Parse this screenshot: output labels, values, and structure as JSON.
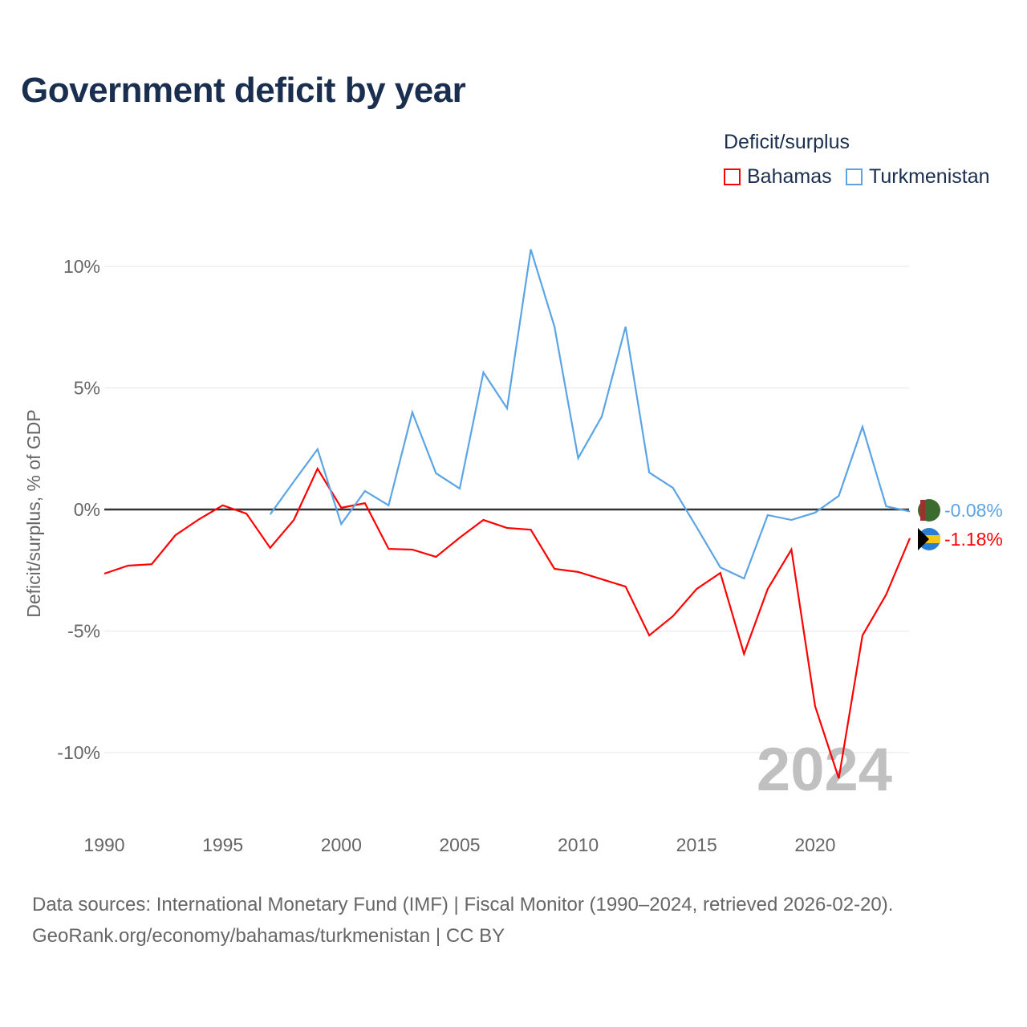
{
  "title": "Government deficit by year",
  "legend": {
    "title": "Deficit/surplus",
    "items": [
      {
        "label": "Bahamas",
        "color": "#ff0000"
      },
      {
        "label": "Turkmenistan",
        "color": "#5ba4e6"
      }
    ]
  },
  "source": {
    "line1": "Data sources: International Monetary Fund (IMF) | Fiscal Monitor (1990–2024, retrieved 2026-02-20).",
    "line2": "GeoRank.org/economy/bahamas/turkmenistan | CC BY"
  },
  "chart_data": {
    "type": "line",
    "title": "Government deficit by year",
    "xlabel": "",
    "ylabel": "Deficit/surplus, % of GDP",
    "xlim": [
      1990,
      2024
    ],
    "ylim": [
      -12.5,
      12
    ],
    "x_ticks": [
      "1990",
      "1995",
      "2000",
      "2005",
      "2010",
      "2015",
      "2020"
    ],
    "y_ticks": [
      {
        "v": 10,
        "label": "10%"
      },
      {
        "v": 5,
        "label": "5%"
      },
      {
        "v": 0,
        "label": "0%"
      },
      {
        "v": -5,
        "label": "-5%"
      },
      {
        "v": -10,
        "label": "-10%"
      }
    ],
    "year_watermark": "2024",
    "series": [
      {
        "name": "Bahamas",
        "color": "#ff0000",
        "end_label": "-1.18%",
        "x": [
          1990,
          1991,
          1992,
          1993,
          1994,
          1995,
          1996,
          1997,
          1998,
          1999,
          2000,
          2001,
          2002,
          2003,
          2004,
          2005,
          2006,
          2007,
          2008,
          2009,
          2010,
          2011,
          2012,
          2013,
          2014,
          2015,
          2016,
          2017,
          2018,
          2019,
          2020,
          2021,
          2022,
          2023,
          2024
        ],
        "values": [
          -2.64,
          -2.31,
          -2.25,
          -1.06,
          -0.4,
          0.17,
          -0.17,
          -1.58,
          -0.43,
          1.68,
          0.07,
          0.26,
          -1.62,
          -1.65,
          -1.95,
          -1.16,
          -0.43,
          -0.76,
          -0.83,
          -2.44,
          -2.57,
          -2.87,
          -3.17,
          -5.18,
          -4.39,
          -3.27,
          -2.61,
          -5.94,
          -3.27,
          -1.65,
          -8.09,
          -11.06,
          -5.18,
          -3.5,
          -1.18
        ]
      },
      {
        "name": "Turkmenistan",
        "color": "#5ba4e6",
        "end_label": "-0.08%",
        "x": [
          1997,
          1998,
          1999,
          2000,
          2001,
          2002,
          2003,
          2004,
          2005,
          2006,
          2007,
          2008,
          2009,
          2010,
          2011,
          2012,
          2013,
          2014,
          2015,
          2016,
          2017,
          2018,
          2019,
          2020,
          2021,
          2022,
          2023,
          2024
        ],
        "values": [
          -0.2,
          1.15,
          2.48,
          -0.6,
          0.76,
          0.17,
          4.0,
          1.49,
          0.86,
          5.64,
          4.16,
          10.7,
          7.52,
          2.11,
          3.83,
          7.52,
          1.52,
          0.89,
          -0.73,
          -2.38,
          -2.84,
          -0.23,
          -0.43,
          -0.13,
          0.56,
          3.4,
          0.13,
          -0.08
        ]
      }
    ]
  }
}
